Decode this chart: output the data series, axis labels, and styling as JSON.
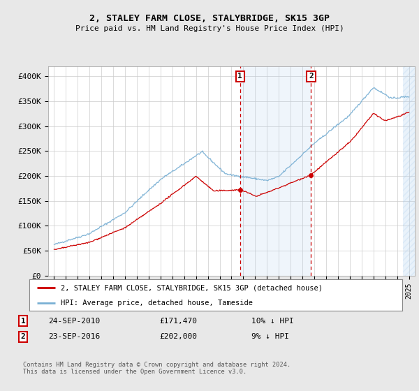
{
  "title": "2, STALEY FARM CLOSE, STALYBRIDGE, SK15 3GP",
  "subtitle": "Price paid vs. HM Land Registry's House Price Index (HPI)",
  "ylim": [
    0,
    420000
  ],
  "yticks": [
    0,
    50000,
    100000,
    150000,
    200000,
    250000,
    300000,
    350000,
    400000
  ],
  "ytick_labels": [
    "£0",
    "£50K",
    "£100K",
    "£150K",
    "£200K",
    "£250K",
    "£300K",
    "£350K",
    "£400K"
  ],
  "hpi_color": "#7ab0d4",
  "price_color": "#cc0000",
  "background_color": "#e8e8e8",
  "plot_bg": "#ffffff",
  "sale1_date": "24-SEP-2010",
  "sale1_price": 171470,
  "sale1_label": "£171,470",
  "sale1_hpi_pct": "10% ↓ HPI",
  "sale2_date": "23-SEP-2016",
  "sale2_price": 202000,
  "sale2_label": "£202,000",
  "sale2_hpi_pct": "9% ↓ HPI",
  "sale1_x": 2010.73,
  "sale2_x": 2016.73,
  "legend_line1": "2, STALEY FARM CLOSE, STALYBRIDGE, SK15 3GP (detached house)",
  "legend_line2": "HPI: Average price, detached house, Tameside",
  "footer": "Contains HM Land Registry data © Crown copyright and database right 2024.\nThis data is licensed under the Open Government Licence v3.0.",
  "hatch_region_start": 2024.5,
  "shaded_region_start": 2010.73,
  "shaded_region_end": 2016.73,
  "xmin": 1994.5,
  "xmax": 2025.5
}
